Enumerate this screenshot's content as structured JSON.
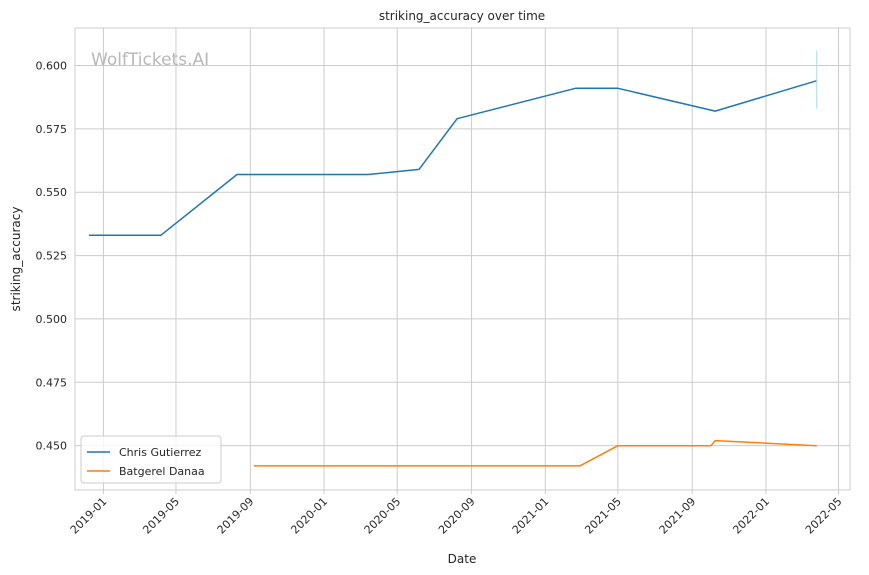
{
  "chart_data": {
    "type": "line",
    "title": "striking_accuracy over time",
    "xlabel": "Date",
    "ylabel": "striking_accuracy",
    "watermark": "WolfTickets.AI",
    "grid": true,
    "legend_position": "lower-left",
    "xlim": [
      "2018-11-15",
      "2022-05-20"
    ],
    "ylim": [
      0.4325,
      0.6148
    ],
    "x_ticks": [
      "2019-01",
      "2019-05",
      "2019-09",
      "2020-01",
      "2020-05",
      "2020-09",
      "2021-01",
      "2021-05",
      "2021-09",
      "2022-01",
      "2022-05"
    ],
    "y_ticks": [
      "0.450",
      "0.475",
      "0.500",
      "0.525",
      "0.550",
      "0.575",
      "0.600"
    ],
    "series": [
      {
        "name": "Chris Gutierrez",
        "color": "#1f77b4",
        "points": [
          {
            "x": "2018-12-08",
            "y": 0.533
          },
          {
            "x": "2019-04-06",
            "y": 0.533
          },
          {
            "x": "2019-08-10",
            "y": 0.557
          },
          {
            "x": "2020-03-14",
            "y": 0.557
          },
          {
            "x": "2020-06-06",
            "y": 0.559
          },
          {
            "x": "2020-08-08",
            "y": 0.579
          },
          {
            "x": "2021-02-20",
            "y": 0.591
          },
          {
            "x": "2021-05-01",
            "y": 0.591
          },
          {
            "x": "2021-10-09",
            "y": 0.582
          },
          {
            "x": "2022-03-26",
            "y": 0.594
          }
        ],
        "error_bar": {
          "x": "2022-03-26",
          "low": 0.583,
          "high": 0.606
        }
      },
      {
        "name": "Batgerel Danaa",
        "color": "#ff7f0e",
        "points": [
          {
            "x": "2019-09-07",
            "y": 0.442
          },
          {
            "x": "2021-02-27",
            "y": 0.442
          },
          {
            "x": "2021-05-01",
            "y": 0.45
          },
          {
            "x": "2021-10-02",
            "y": 0.45
          },
          {
            "x": "2021-10-09",
            "y": 0.452
          },
          {
            "x": "2022-03-26",
            "y": 0.45
          }
        ]
      }
    ]
  }
}
